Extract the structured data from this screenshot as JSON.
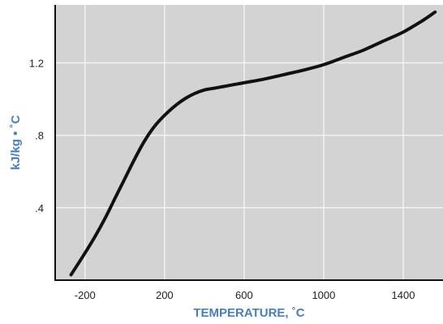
{
  "chart_data": {
    "type": "line",
    "xlabel": "TEMPERATURE, ˚C",
    "ylabel": "kJ/kg • ˚C",
    "xlim": [
      -350,
      1600
    ],
    "ylim": [
      0,
      1.52
    ],
    "x_ticks": [
      {
        "value": -200,
        "label": "-200"
      },
      {
        "value": 200,
        "label": "200"
      },
      {
        "value": 600,
        "label": "600"
      },
      {
        "value": 1000,
        "label": "1000"
      },
      {
        "value": 1400,
        "label": "1400"
      }
    ],
    "y_ticks": [
      {
        "value": 0.4,
        "label": ".4"
      },
      {
        "value": 0.8,
        "label": ".8"
      },
      {
        "value": 1.2,
        "label": "1.2"
      }
    ],
    "grid": true,
    "colors": {
      "plot_background": "#d3d3d3",
      "grid": "#f2f2f2",
      "line": "#111111",
      "axis_title": "#4a7fb5"
    },
    "series": [
      {
        "x": [
          -270,
          -200,
          -150,
          -100,
          -50,
          0,
          50,
          100,
          150,
          200,
          250,
          300,
          350,
          400,
          450,
          500,
          600,
          700,
          800,
          900,
          1000,
          1100,
          1200,
          1300,
          1400,
          1500,
          1560
        ],
        "values": [
          0.03,
          0.15,
          0.24,
          0.34,
          0.45,
          0.56,
          0.67,
          0.77,
          0.85,
          0.91,
          0.96,
          1.0,
          1.03,
          1.05,
          1.06,
          1.07,
          1.09,
          1.11,
          1.135,
          1.16,
          1.19,
          1.23,
          1.27,
          1.32,
          1.37,
          1.435,
          1.48
        ]
      }
    ]
  }
}
